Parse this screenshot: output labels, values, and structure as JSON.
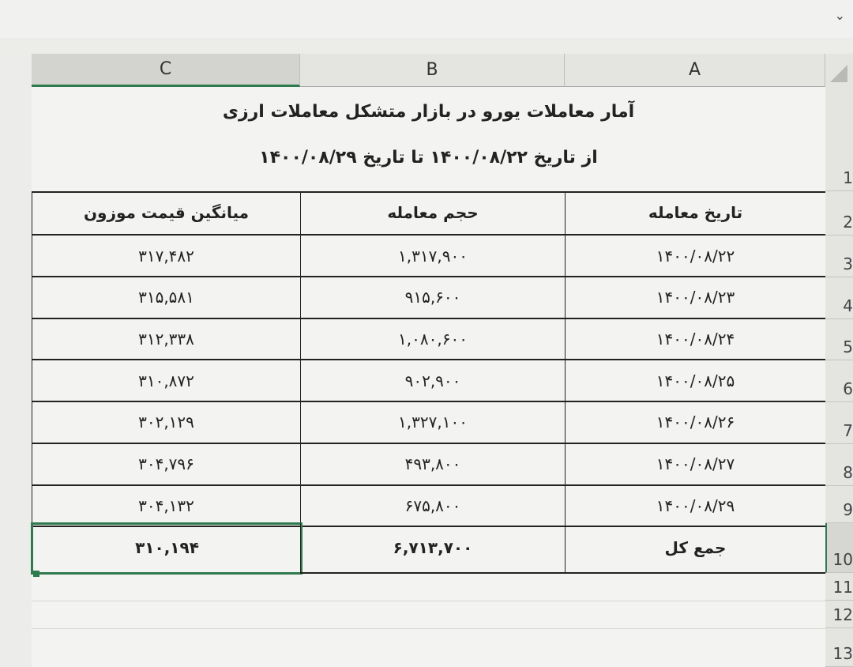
{
  "columns": [
    "C",
    "B",
    "A"
  ],
  "rows": [
    "1",
    "2",
    "3",
    "4",
    "5",
    "6",
    "7",
    "8",
    "9",
    "10",
    "11",
    "12",
    "13"
  ],
  "title": {
    "line1": "آمار معاملات یورو در بازار متشکل معاملات ارزی",
    "line2": "از تاریخ ۱۴۰۰/۰۸/۲۲ تا تاریخ ۱۴۰۰/۰۸/۲۹"
  },
  "headers": {
    "date": "تاریخ معامله",
    "volume": "حجم معامله",
    "avg_price": "میانگین قیمت موزون"
  },
  "data": [
    {
      "date": "۱۴۰۰/۰۸/۲۲",
      "volume": "۱,۳۱۷,۹۰۰",
      "avg_price": "۳۱۷,۴۸۲"
    },
    {
      "date": "۱۴۰۰/۰۸/۲۳",
      "volume": "۹۱۵,۶۰۰",
      "avg_price": "۳۱۵,۵۸۱"
    },
    {
      "date": "۱۴۰۰/۰۸/۲۴",
      "volume": "۱,۰۸۰,۶۰۰",
      "avg_price": "۳۱۲,۳۳۸"
    },
    {
      "date": "۱۴۰۰/۰۸/۲۵",
      "volume": "۹۰۲,۹۰۰",
      "avg_price": "۳۱۰,۸۷۲"
    },
    {
      "date": "۱۴۰۰/۰۸/۲۶",
      "volume": "۱,۳۲۷,۱۰۰",
      "avg_price": "۳۰۲,۱۲۹"
    },
    {
      "date": "۱۴۰۰/۰۸/۲۷",
      "volume": "۴۹۳,۸۰۰",
      "avg_price": "۳۰۴,۷۹۶"
    },
    {
      "date": "۱۴۰۰/۰۸/۲۹",
      "volume": "۶۷۵,۸۰۰",
      "avg_price": "۳۰۴,۱۳۲"
    }
  ],
  "total": {
    "label": "جمع کل",
    "volume": "۶,۷۱۳,۷۰۰",
    "avg_price": "۳۱۰,۱۹۴"
  },
  "selected_cell": "C10",
  "accent": "#2f7a4e",
  "icons": {
    "dropdown": "chevron-down-icon",
    "select_all": "select-all-triangle-icon"
  }
}
